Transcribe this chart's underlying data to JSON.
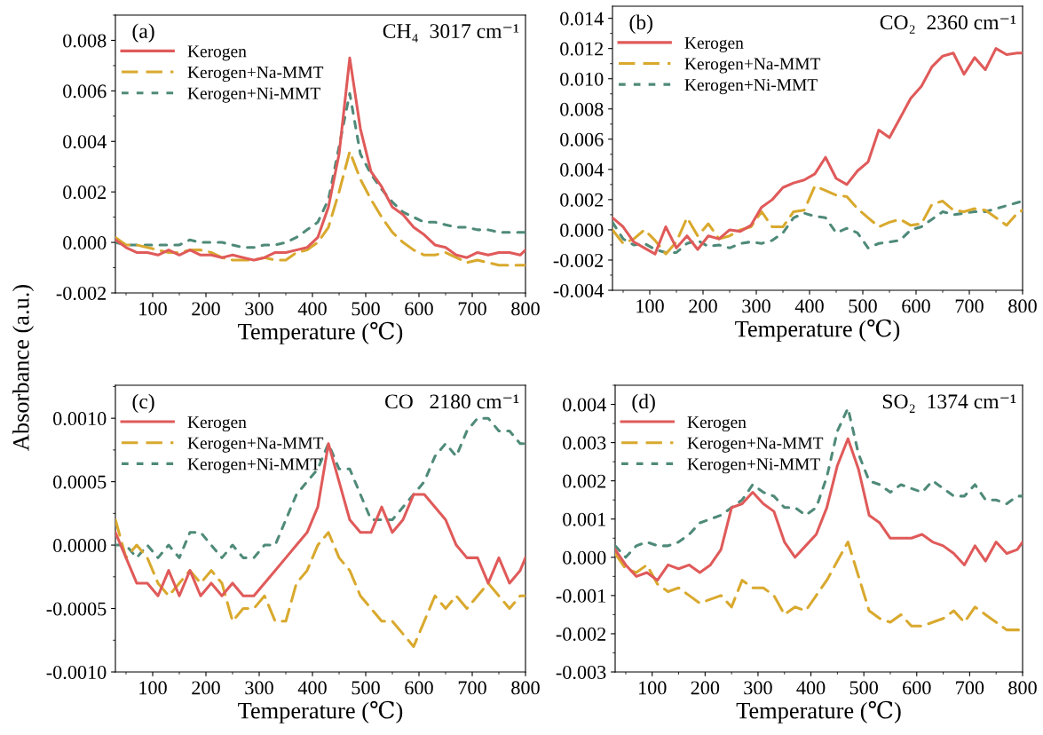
{
  "chart_data": [
    {
      "type": "line",
      "xlabel": "Temperature (℃)",
      "ylabel": "Absorbance (a.u.)",
      "annotations": [
        "(a)",
        "CH₄  3017 cm⁻¹"
      ],
      "x": [
        30,
        50,
        70,
        90,
        110,
        130,
        150,
        170,
        190,
        210,
        230,
        250,
        270,
        290,
        310,
        330,
        350,
        370,
        390,
        410,
        430,
        450,
        470,
        490,
        510,
        530,
        550,
        570,
        590,
        610,
        630,
        650,
        670,
        690,
        710,
        730,
        750,
        770,
        790,
        800
      ],
      "xlim": [
        30,
        800
      ],
      "xticks": [
        100,
        200,
        300,
        400,
        500,
        600,
        700,
        800
      ],
      "ylim": [
        -0.002,
        0.009
      ],
      "yticks": [
        {
          "value": -0.002,
          "label": "-0.002"
        },
        {
          "value": 0,
          "label": "0.000"
        },
        {
          "value": 0.002,
          "label": "0.002"
        },
        {
          "value": 0.004,
          "label": "0.004"
        },
        {
          "value": 0.006,
          "label": "0.006"
        },
        {
          "value": 0.008,
          "label": "0.008"
        }
      ],
      "legend": "top left",
      "series": [
        {
          "name": "Kerogen",
          "color": "#e05a5a",
          "line_style": "solid",
          "values": [
            0.0001,
            -0.0002,
            -0.0004,
            -0.0004,
            -0.0005,
            -0.0003,
            -0.0005,
            -0.0003,
            -0.0005,
            -0.0005,
            -0.0006,
            -0.0005,
            -0.0006,
            -0.0007,
            -0.0006,
            -0.0004,
            -0.0004,
            -0.0003,
            -0.0002,
            0.0002,
            0.0014,
            0.0035,
            0.0073,
            0.0045,
            0.0028,
            0.0022,
            0.0014,
            0.0011,
            0.0006,
            0.0003,
            -0.0001,
            -0.0002,
            -0.0005,
            -0.0006,
            -0.0004,
            -0.0005,
            -0.0004,
            -0.0004,
            -0.0005,
            -0.0003
          ]
        },
        {
          "name": "Kerogen+Na-MMT",
          "color": "#d9a92e",
          "line_style": "dashed",
          "values": [
            0.0002,
            -0.0001,
            -0.0001,
            -0.0002,
            -0.0003,
            -0.0004,
            -0.0004,
            -0.0003,
            -0.0003,
            -0.0004,
            -0.0006,
            -0.0007,
            -0.0007,
            -0.0007,
            -0.0006,
            -0.0007,
            -0.0007,
            -0.0004,
            -0.0003,
            0.0,
            0.0006,
            0.002,
            0.0036,
            0.0025,
            0.0017,
            0.001,
            0.0004,
            0.0,
            -0.0003,
            -0.0005,
            -0.0005,
            -0.0004,
            -0.0006,
            -0.0008,
            -0.0007,
            -0.0008,
            -0.0009,
            -0.0009,
            -0.0009,
            -0.0009
          ]
        },
        {
          "name": "Kerogen+Ni-MMT",
          "color": "#4f8a79",
          "line_style": "dotted",
          "values": [
            0.0,
            -0.0001,
            -0.0001,
            -0.0001,
            -0.0001,
            -0.0001,
            -0.0001,
            0.0001,
            0.0,
            0.0,
            0.0,
            -0.0001,
            -0.0002,
            -0.0002,
            -0.0001,
            -0.0001,
            0.0,
            0.0002,
            0.0005,
            0.0008,
            0.0017,
            0.0038,
            0.0059,
            0.0035,
            0.0027,
            0.0021,
            0.0016,
            0.0012,
            0.001,
            0.0008,
            0.0008,
            0.0007,
            0.0006,
            0.0006,
            0.0005,
            0.0005,
            0.0004,
            0.0004,
            0.0004,
            0.0004
          ]
        }
      ]
    },
    {
      "type": "line",
      "xlabel": "Temperature (℃)",
      "annotations": [
        "(b)",
        "CO₂  2360 cm⁻¹"
      ],
      "x": [
        30,
        50,
        70,
        90,
        110,
        130,
        150,
        170,
        190,
        210,
        230,
        250,
        270,
        290,
        310,
        330,
        350,
        370,
        390,
        410,
        430,
        450,
        470,
        490,
        510,
        530,
        550,
        570,
        590,
        610,
        630,
        650,
        670,
        690,
        710,
        730,
        750,
        770,
        790,
        800
      ],
      "xlim": [
        30,
        800
      ],
      "xticks": [
        100,
        200,
        300,
        400,
        500,
        600,
        700,
        800
      ],
      "ylim": [
        -0.004,
        0.0148
      ],
      "yticks": [
        {
          "value": -0.004,
          "label": "-0.004"
        },
        {
          "value": -0.002,
          "label": "-0.002"
        },
        {
          "value": 0,
          "label": "0.000"
        },
        {
          "value": 0.002,
          "label": "0.002"
        },
        {
          "value": 0.004,
          "label": "0.004"
        },
        {
          "value": 0.006,
          "label": "0.006"
        },
        {
          "value": 0.008,
          "label": "0.008"
        },
        {
          "value": 0.01,
          "label": "0.010"
        },
        {
          "value": 0.012,
          "label": "0.012"
        },
        {
          "value": 0.014,
          "label": "0.014"
        }
      ],
      "legend": "top left",
      "series": [
        {
          "name": "Kerogen",
          "color": "#e05a5a",
          "line_style": "solid",
          "values": [
            0.0008,
            0.0002,
            -0.0008,
            -0.0012,
            -0.0016,
            0.0002,
            -0.0012,
            -0.0004,
            -0.0013,
            -0.0004,
            -0.0006,
            0.0,
            -0.0001,
            0.0003,
            0.0015,
            0.002,
            0.0028,
            0.0031,
            0.0033,
            0.0037,
            0.0048,
            0.0034,
            0.003,
            0.0039,
            0.0045,
            0.0066,
            0.0061,
            0.0074,
            0.0087,
            0.0095,
            0.0108,
            0.0115,
            0.0117,
            0.0103,
            0.0114,
            0.0106,
            0.012,
            0.0116,
            0.0117,
            0.0117
          ]
        },
        {
          "name": "Kerogen+Na-MMT",
          "color": "#d9a92e",
          "line_style": "dashed",
          "values": [
            0.0,
            -0.0009,
            -0.0006,
            0.0,
            -0.0007,
            -0.0016,
            -0.0008,
            0.0008,
            -0.0004,
            0.0004,
            -0.0006,
            -0.0004,
            0.0,
            0.0002,
            0.0012,
            0.0002,
            0.0002,
            0.0012,
            0.0013,
            0.0029,
            0.0026,
            0.0023,
            0.0022,
            0.0014,
            0.0008,
            0.0002,
            0.0005,
            0.0007,
            0.0003,
            0.0004,
            0.0017,
            0.0019,
            0.0013,
            0.0012,
            0.0014,
            0.0013,
            0.0008,
            0.0003,
            0.0011,
            0.0013
          ]
        },
        {
          "name": "Kerogen+Ni-MMT",
          "color": "#4f8a79",
          "line_style": "dotted",
          "values": [
            0.0005,
            -0.0006,
            -0.001,
            -0.0009,
            -0.0013,
            -0.0015,
            -0.0015,
            -0.0009,
            -0.0007,
            -0.0011,
            -0.001,
            -0.0012,
            -0.0009,
            -0.0008,
            -0.0009,
            -0.0007,
            -0.0002,
            0.0008,
            0.0011,
            0.0009,
            0.0008,
            -0.0002,
            0.0001,
            -0.0002,
            -0.0012,
            -0.0009,
            -0.0008,
            -0.0007,
            0.0,
            0.0002,
            0.0007,
            0.0012,
            0.001,
            0.0011,
            0.0012,
            0.0012,
            0.0014,
            0.0016,
            0.0018,
            0.0019
          ]
        }
      ]
    },
    {
      "type": "line",
      "xlabel": "Temperature (℃)",
      "annotations": [
        "(c)",
        "CO   2180 cm⁻¹"
      ],
      "x": [
        30,
        50,
        70,
        90,
        110,
        130,
        150,
        170,
        190,
        210,
        230,
        250,
        270,
        290,
        310,
        330,
        350,
        370,
        390,
        410,
        430,
        450,
        470,
        490,
        510,
        530,
        550,
        570,
        590,
        610,
        630,
        650,
        670,
        690,
        710,
        730,
        750,
        770,
        790,
        800
      ],
      "xlim": [
        30,
        800
      ],
      "xticks": [
        100,
        200,
        300,
        400,
        500,
        600,
        700,
        800
      ],
      "ylim": [
        -0.001,
        0.00126
      ],
      "yticks": [
        {
          "value": -0.001,
          "label": "-0.0010"
        },
        {
          "value": -0.0005,
          "label": "-0.0005"
        },
        {
          "value": 0,
          "label": "0.0000"
        },
        {
          "value": 0.0005,
          "label": "0.0005"
        },
        {
          "value": 0.001,
          "label": "0.0010"
        }
      ],
      "legend": "top left",
      "series": [
        {
          "name": "Kerogen",
          "color": "#e05a5a",
          "line_style": "solid",
          "values": [
            0.0001,
            -0.0001,
            -0.0003,
            -0.0003,
            -0.0004,
            -0.0002,
            -0.0004,
            -0.0002,
            -0.0004,
            -0.0003,
            -0.0004,
            -0.0003,
            -0.0004,
            -0.0004,
            -0.0003,
            -0.0002,
            -0.0001,
            0.0,
            0.0001,
            0.0003,
            0.0008,
            0.0005,
            0.0002,
            0.0001,
            0.0001,
            0.0003,
            0.0001,
            0.0002,
            0.0004,
            0.0004,
            0.0003,
            0.0002,
            0.0,
            -0.0001,
            -0.0001,
            -0.0003,
            -0.0001,
            -0.0003,
            -0.0002,
            -0.0001
          ]
        },
        {
          "name": "Kerogen+Na-MMT",
          "color": "#d9a92e",
          "line_style": "dashed",
          "values": [
            0.0002,
            -0.0001,
            0.0,
            -0.0001,
            -0.0003,
            -0.0004,
            -0.0003,
            -0.0002,
            -0.0003,
            -0.0002,
            -0.0003,
            -0.0006,
            -0.0005,
            -0.0005,
            -0.0004,
            -0.0006,
            -0.0006,
            -0.0003,
            -0.0002,
            0.0,
            0.0001,
            -0.0001,
            -0.0002,
            -0.0004,
            -0.0005,
            -0.0006,
            -0.0006,
            -0.0007,
            -0.0008,
            -0.0006,
            -0.0004,
            -0.0005,
            -0.0004,
            -0.0005,
            -0.0004,
            -0.0003,
            -0.0004,
            -0.0005,
            -0.0004,
            -0.0004
          ]
        },
        {
          "name": "Kerogen+Ni-MMT",
          "color": "#4f8a79",
          "line_style": "dotted",
          "values": [
            0.0,
            0.0,
            -0.0001,
            0.0,
            -0.0001,
            0.0,
            -0.0001,
            0.0001,
            0.0001,
            0.0,
            -0.0001,
            0.0,
            -0.0001,
            -0.0001,
            0.0,
            0.0,
            0.0002,
            0.0004,
            0.0005,
            0.0006,
            0.0008,
            0.0006,
            0.0006,
            0.0004,
            0.0002,
            0.0002,
            0.0002,
            0.0003,
            0.0004,
            0.0005,
            0.0007,
            0.0008,
            0.0007,
            0.0009,
            0.001,
            0.001,
            0.0009,
            0.0009,
            0.0008,
            0.0008
          ]
        }
      ]
    },
    {
      "type": "line",
      "xlabel": "Temperature (℃)",
      "annotations": [
        "(d)",
        "SO₂  1374 cm⁻¹"
      ],
      "x": [
        30,
        50,
        70,
        90,
        110,
        130,
        150,
        170,
        190,
        210,
        230,
        250,
        270,
        290,
        310,
        330,
        350,
        370,
        390,
        410,
        430,
        450,
        470,
        490,
        510,
        530,
        550,
        570,
        590,
        610,
        630,
        650,
        670,
        690,
        710,
        730,
        750,
        770,
        790,
        800
      ],
      "xlim": [
        30,
        800
      ],
      "xticks": [
        100,
        200,
        300,
        400,
        500,
        600,
        700,
        800
      ],
      "ylim": [
        -0.003,
        0.0045
      ],
      "yticks": [
        {
          "value": -0.003,
          "label": "-0.003"
        },
        {
          "value": -0.002,
          "label": "-0.002"
        },
        {
          "value": -0.001,
          "label": "-0.001"
        },
        {
          "value": 0,
          "label": "0.000"
        },
        {
          "value": 0.001,
          "label": "0.001"
        },
        {
          "value": 0.002,
          "label": "0.002"
        },
        {
          "value": 0.003,
          "label": "0.003"
        },
        {
          "value": 0.004,
          "label": "0.004"
        }
      ],
      "legend": "top left",
      "series": [
        {
          "name": "Kerogen",
          "color": "#e05a5a",
          "line_style": "solid",
          "values": [
            0.0002,
            -0.0002,
            -0.0005,
            -0.0004,
            -0.0006,
            -0.0002,
            -0.0003,
            -0.0002,
            -0.0004,
            -0.0002,
            0.0002,
            0.0013,
            0.0014,
            0.0017,
            0.0014,
            0.0012,
            0.0004,
            0.0,
            0.0003,
            0.0006,
            0.0013,
            0.0024,
            0.0031,
            0.0023,
            0.0011,
            0.0009,
            0.0005,
            0.0005,
            0.0005,
            0.0006,
            0.0004,
            0.0003,
            0.0001,
            -0.0002,
            0.0003,
            -0.0001,
            0.0004,
            0.0001,
            0.0002,
            0.0004
          ]
        },
        {
          "name": "Kerogen+Na-MMT",
          "color": "#d9a92e",
          "line_style": "dashed",
          "values": [
            0.0001,
            -0.0003,
            -0.0004,
            -0.0002,
            -0.0007,
            -0.0009,
            -0.0008,
            -0.001,
            -0.0012,
            -0.0011,
            -0.001,
            -0.0013,
            -0.0006,
            -0.0008,
            -0.0008,
            -0.001,
            -0.0015,
            -0.0013,
            -0.0014,
            -0.001,
            -0.0006,
            -0.0001,
            0.0004,
            -0.0005,
            -0.0014,
            -0.0016,
            -0.0017,
            -0.0015,
            -0.0018,
            -0.0018,
            -0.0017,
            -0.0016,
            -0.0014,
            -0.0017,
            -0.0013,
            -0.0015,
            -0.0017,
            -0.0019,
            -0.0019,
            -0.0019
          ]
        },
        {
          "name": "Kerogen+Ni-MMT",
          "color": "#4f8a79",
          "line_style": "dotted",
          "values": [
            0.0003,
            0.0,
            0.0003,
            0.0004,
            0.0003,
            0.0003,
            0.0004,
            0.0006,
            0.0009,
            0.001,
            0.0011,
            0.0013,
            0.0015,
            0.0019,
            0.0017,
            0.0016,
            0.0013,
            0.0013,
            0.0011,
            0.0013,
            0.0021,
            0.0033,
            0.0039,
            0.0027,
            0.002,
            0.0019,
            0.0017,
            0.0019,
            0.0018,
            0.0017,
            0.002,
            0.0018,
            0.0016,
            0.0016,
            0.0019,
            0.0015,
            0.0015,
            0.0014,
            0.0016,
            0.0016
          ]
        }
      ]
    }
  ]
}
